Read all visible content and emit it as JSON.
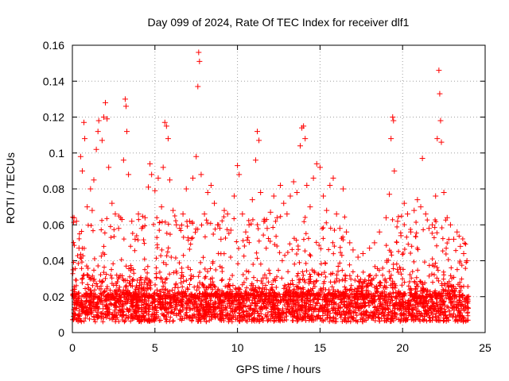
{
  "chart_data": {
    "type": "scatter",
    "title": "Day 099 of 2024, Rate Of TEC Index for receiver dlf1",
    "xlabel": "GPS time / hours",
    "ylabel": "ROTI / TECUs",
    "xlim": [
      0,
      25
    ],
    "ylim": [
      0,
      0.16
    ],
    "x_ticks": [
      0,
      5,
      10,
      15,
      20,
      25
    ],
    "y_ticks": [
      0,
      0.02,
      0.04,
      0.06,
      0.08,
      0.1,
      0.12,
      0.14,
      0.16
    ],
    "x_tick_labels": [
      "0",
      "5",
      "10",
      "15",
      "20",
      "25"
    ],
    "y_tick_labels": [
      "0",
      "0.02",
      "0.04",
      "0.06",
      "0.08",
      "0.1",
      "0.12",
      "0.14",
      "0.16"
    ],
    "grid": true,
    "marker": "+",
    "color": "#ff0000",
    "series": [
      {
        "name": "ROTI",
        "points": [
          [
            0.05,
            0.035
          ],
          [
            0.1,
            0.064
          ],
          [
            0.25,
            0.062
          ],
          [
            0.4,
            0.047
          ],
          [
            0.5,
            0.098
          ],
          [
            0.6,
            0.09
          ],
          [
            0.7,
            0.117
          ],
          [
            0.75,
            0.108
          ],
          [
            0.9,
            0.07
          ],
          [
            1.1,
            0.08
          ],
          [
            1.2,
            0.068
          ],
          [
            1.3,
            0.085
          ],
          [
            1.45,
            0.102
          ],
          [
            1.55,
            0.112
          ],
          [
            1.6,
            0.118
          ],
          [
            1.8,
            0.107
          ],
          [
            1.9,
            0.12
          ],
          [
            2.0,
            0.128
          ],
          [
            2.1,
            0.119
          ],
          [
            2.2,
            0.092
          ],
          [
            2.4,
            0.072
          ],
          [
            2.6,
            0.066
          ],
          [
            2.8,
            0.058
          ],
          [
            3.0,
            0.063
          ],
          [
            3.1,
            0.096
          ],
          [
            3.2,
            0.13
          ],
          [
            3.25,
            0.126
          ],
          [
            3.3,
            0.112
          ],
          [
            3.4,
            0.088
          ],
          [
            3.6,
            0.062
          ],
          [
            3.8,
            0.052
          ],
          [
            4.0,
            0.066
          ],
          [
            4.2,
            0.058
          ],
          [
            4.4,
            0.064
          ],
          [
            4.6,
            0.081
          ],
          [
            4.7,
            0.094
          ],
          [
            4.8,
            0.088
          ],
          [
            5.0,
            0.079
          ],
          [
            5.2,
            0.086
          ],
          [
            5.4,
            0.07
          ],
          [
            5.5,
            0.092
          ],
          [
            5.6,
            0.117
          ],
          [
            5.7,
            0.115
          ],
          [
            5.8,
            0.108
          ],
          [
            5.9,
            0.085
          ],
          [
            6.1,
            0.068
          ],
          [
            6.3,
            0.06
          ],
          [
            6.5,
            0.058
          ],
          [
            6.7,
            0.066
          ],
          [
            6.9,
            0.08
          ],
          [
            7.1,
            0.062
          ],
          [
            7.3,
            0.086
          ],
          [
            7.5,
            0.098
          ],
          [
            7.6,
            0.137
          ],
          [
            7.65,
            0.156
          ],
          [
            7.7,
            0.151
          ],
          [
            7.8,
            0.088
          ],
          [
            8.0,
            0.066
          ],
          [
            8.2,
            0.078
          ],
          [
            8.4,
            0.082
          ],
          [
            8.6,
            0.072
          ],
          [
            8.8,
            0.06
          ],
          [
            9.0,
            0.052
          ],
          [
            9.2,
            0.068
          ],
          [
            9.4,
            0.066
          ],
          [
            9.6,
            0.057
          ],
          [
            9.8,
            0.076
          ],
          [
            10.0,
            0.093
          ],
          [
            10.1,
            0.088
          ],
          [
            10.3,
            0.066
          ],
          [
            10.5,
            0.056
          ],
          [
            10.7,
            0.06
          ],
          [
            10.9,
            0.074
          ],
          [
            11.1,
            0.096
          ],
          [
            11.2,
            0.112
          ],
          [
            11.3,
            0.107
          ],
          [
            11.4,
            0.078
          ],
          [
            11.6,
            0.062
          ],
          [
            11.8,
            0.058
          ],
          [
            12.0,
            0.067
          ],
          [
            12.2,
            0.076
          ],
          [
            12.4,
            0.064
          ],
          [
            12.6,
            0.082
          ],
          [
            12.8,
            0.072
          ],
          [
            13.0,
            0.066
          ],
          [
            13.2,
            0.076
          ],
          [
            13.4,
            0.084
          ],
          [
            13.6,
            0.078
          ],
          [
            13.8,
            0.104
          ],
          [
            13.9,
            0.114
          ],
          [
            14.0,
            0.115
          ],
          [
            14.1,
            0.108
          ],
          [
            14.2,
            0.082
          ],
          [
            14.4,
            0.07
          ],
          [
            14.6,
            0.086
          ],
          [
            14.8,
            0.094
          ],
          [
            15.0,
            0.092
          ],
          [
            15.2,
            0.076
          ],
          [
            15.4,
            0.068
          ],
          [
            15.6,
            0.082
          ],
          [
            15.8,
            0.086
          ],
          [
            16.0,
            0.066
          ],
          [
            16.2,
            0.058
          ],
          [
            16.4,
            0.08
          ],
          [
            16.6,
            0.056
          ],
          [
            16.8,
            0.05
          ],
          [
            17.0,
            0.046
          ],
          [
            17.3,
            0.042
          ],
          [
            17.6,
            0.044
          ],
          [
            18.0,
            0.047
          ],
          [
            18.3,
            0.05
          ],
          [
            18.6,
            0.056
          ],
          [
            19.0,
            0.064
          ],
          [
            19.2,
            0.077
          ],
          [
            19.3,
            0.108
          ],
          [
            19.4,
            0.12
          ],
          [
            19.45,
            0.118
          ],
          [
            19.5,
            0.09
          ],
          [
            19.7,
            0.062
          ],
          [
            19.9,
            0.054
          ],
          [
            20.1,
            0.072
          ],
          [
            20.3,
            0.066
          ],
          [
            20.5,
            0.056
          ],
          [
            20.7,
            0.068
          ],
          [
            20.9,
            0.074
          ],
          [
            21.1,
            0.07
          ],
          [
            21.2,
            0.097
          ],
          [
            21.4,
            0.066
          ],
          [
            21.6,
            0.058
          ],
          [
            21.8,
            0.06
          ],
          [
            22.0,
            0.076
          ],
          [
            22.1,
            0.108
          ],
          [
            22.2,
            0.146
          ],
          [
            22.25,
            0.133
          ],
          [
            22.3,
            0.118
          ],
          [
            22.35,
            0.106
          ],
          [
            22.5,
            0.078
          ],
          [
            22.7,
            0.064
          ],
          [
            22.9,
            0.06
          ],
          [
            23.1,
            0.052
          ],
          [
            23.3,
            0.056
          ],
          [
            23.5,
            0.048
          ],
          [
            23.7,
            0.044
          ],
          [
            23.9,
            0.04
          ]
        ]
      }
    ]
  }
}
